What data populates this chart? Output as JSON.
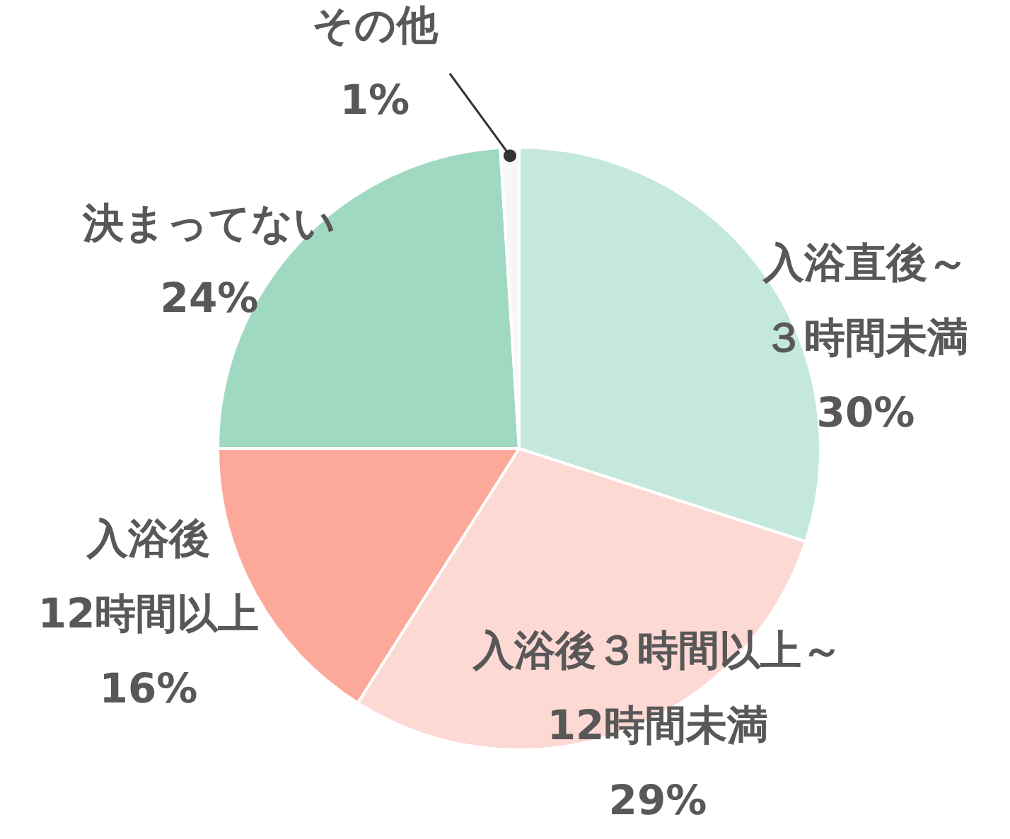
{
  "chart_data": {
    "type": "pie",
    "categories": [
      "入浴直後～３時間未満",
      "入浴後３時間以上～12時間未満",
      "入浴後12時間以上",
      "決まってない",
      "その他"
    ],
    "values": [
      30,
      29,
      16,
      24,
      1
    ],
    "value_labels": [
      "30%",
      "29%",
      "16%",
      "24%",
      "1%"
    ],
    "colors": [
      "#c5e8dc",
      "#fdd9d4",
      "#fca99a",
      "#9fd9c2",
      "#f7f7f7"
    ],
    "legend": false
  }
}
